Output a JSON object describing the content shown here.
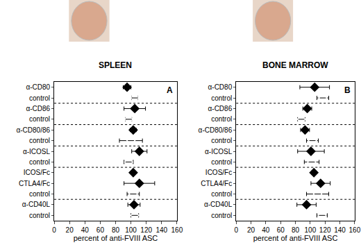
{
  "chart_data": [
    {
      "type": "scatter",
      "orientation": "horizontal",
      "title": "SPLEEN",
      "annotations": [
        "A"
      ],
      "categories": [
        "α-CD80",
        "control",
        "α-CD86",
        "control",
        "α-CD80/86",
        "control",
        "α-ICOSL",
        "control",
        "ICOS/Fc",
        "CTLA4/Fc",
        "control",
        "α-CD40L",
        "control"
      ],
      "series": [
        {
          "marker": "diamond",
          "color": "#000000",
          "values": [
            95,
            null,
            105,
            null,
            103,
            null,
            111,
            null,
            103,
            111,
            null,
            104,
            null
          ],
          "errors": [
            5,
            null,
            14,
            null,
            4,
            null,
            10,
            null,
            2,
            20,
            null,
            8,
            null
          ]
        },
        {
          "marker": "diamond-open",
          "color": "#000000",
          "values": [
            null,
            105,
            null,
            97,
            null,
            100,
            null,
            97,
            null,
            null,
            103,
            null,
            105
          ],
          "errors": [
            null,
            4,
            null,
            4,
            null,
            15,
            null,
            6,
            null,
            null,
            8,
            null,
            5
          ]
        }
      ],
      "xlabel": "percent of anti-FVIII ASC",
      "xlim": [
        0,
        160
      ],
      "xticks": [
        0,
        20,
        40,
        60,
        80,
        100,
        120,
        140,
        160
      ],
      "grid": false
    },
    {
      "type": "scatter",
      "orientation": "horizontal",
      "title": "BONE MARROW",
      "annotations": [
        "B"
      ],
      "categories": [
        "α-CD80",
        "control",
        "α-CD86",
        "control",
        "α-CD80/86",
        "control",
        "α-ICOSL",
        "control",
        "ICOS/Fc",
        "CTLA4/Fc",
        "control",
        "α-CD40L",
        "control"
      ],
      "series": [
        {
          "marker": "diamond",
          "color": "#000000",
          "values": [
            106,
            null,
            96,
            null,
            93,
            null,
            101,
            null,
            105,
            114,
            null,
            95,
            null
          ],
          "errors": [
            20,
            null,
            6,
            null,
            6,
            null,
            18,
            null,
            3,
            13,
            null,
            13,
            null
          ]
        },
        {
          "marker": "diamond-open",
          "color": "#000000",
          "values": [
            null,
            117,
            null,
            88,
            null,
            103,
            null,
            102,
            null,
            null,
            110,
            null,
            116
          ],
          "errors": [
            null,
            8,
            null,
            5,
            null,
            8,
            null,
            10,
            null,
            null,
            15,
            null,
            7
          ]
        }
      ],
      "xlabel": "percent of anti-FVIII ASC",
      "xlim": [
        0,
        160
      ],
      "xticks": [
        0,
        20,
        40,
        60,
        80,
        100,
        120,
        140,
        160
      ],
      "grid": false
    }
  ]
}
